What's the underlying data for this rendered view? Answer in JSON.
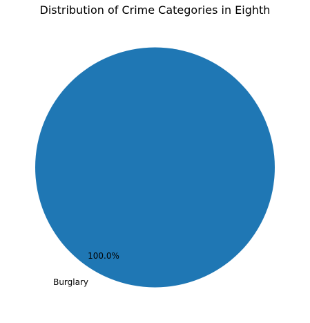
{
  "chart_data": {
    "type": "pie",
    "title": "Distribution of Crime Categories in Eighth",
    "categories": [
      "Burglary"
    ],
    "values": [
      100
    ],
    "percent_labels": [
      "100.0%"
    ],
    "colors": [
      "#1f77b4"
    ]
  }
}
